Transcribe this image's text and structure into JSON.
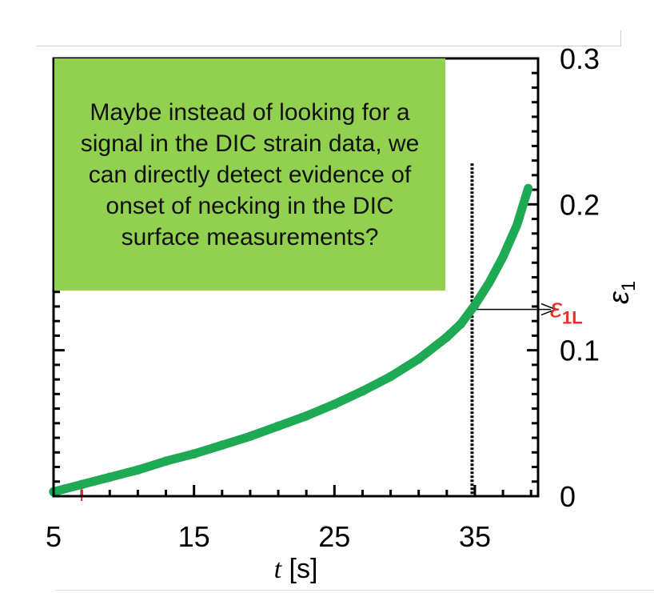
{
  "callout": {
    "text": "Maybe instead of looking for a signal in the DIC strain data, we can directly detect evidence of onset of necking in the DIC surface measurements?",
    "background": "#92d050"
  },
  "colors": {
    "series": "#1eaa55",
    "marker_label": "#e8302a",
    "axis": "#000000"
  },
  "chart_data": {
    "type": "line",
    "xlabel": {
      "var": "t",
      "unit": "[s]"
    },
    "ylabel": {
      "var": "ε",
      "sub": "1"
    },
    "xlim": [
      5,
      39.5
    ],
    "ylim": [
      0,
      0.3
    ],
    "x_ticks": [
      "5",
      "15",
      "25",
      "35"
    ],
    "y_ticks": [
      "0",
      "0.1",
      "0.2",
      "0.3"
    ],
    "series": [
      {
        "x": [
          5,
          7,
          9,
          11,
          13,
          15,
          17,
          19,
          21,
          23,
          25,
          27,
          29,
          31,
          33,
          34,
          35,
          36,
          37,
          38,
          38.8
        ],
        "y": [
          0.003,
          0.008,
          0.013,
          0.018,
          0.024,
          0.029,
          0.035,
          0.041,
          0.048,
          0.055,
          0.063,
          0.072,
          0.082,
          0.094,
          0.109,
          0.118,
          0.131,
          0.146,
          0.164,
          0.186,
          0.211
        ]
      }
    ],
    "annotations": {
      "limit_time": 34.8,
      "limit_strain": 0.128,
      "limit_label": {
        "var": "ε",
        "sub": "1L"
      }
    }
  }
}
